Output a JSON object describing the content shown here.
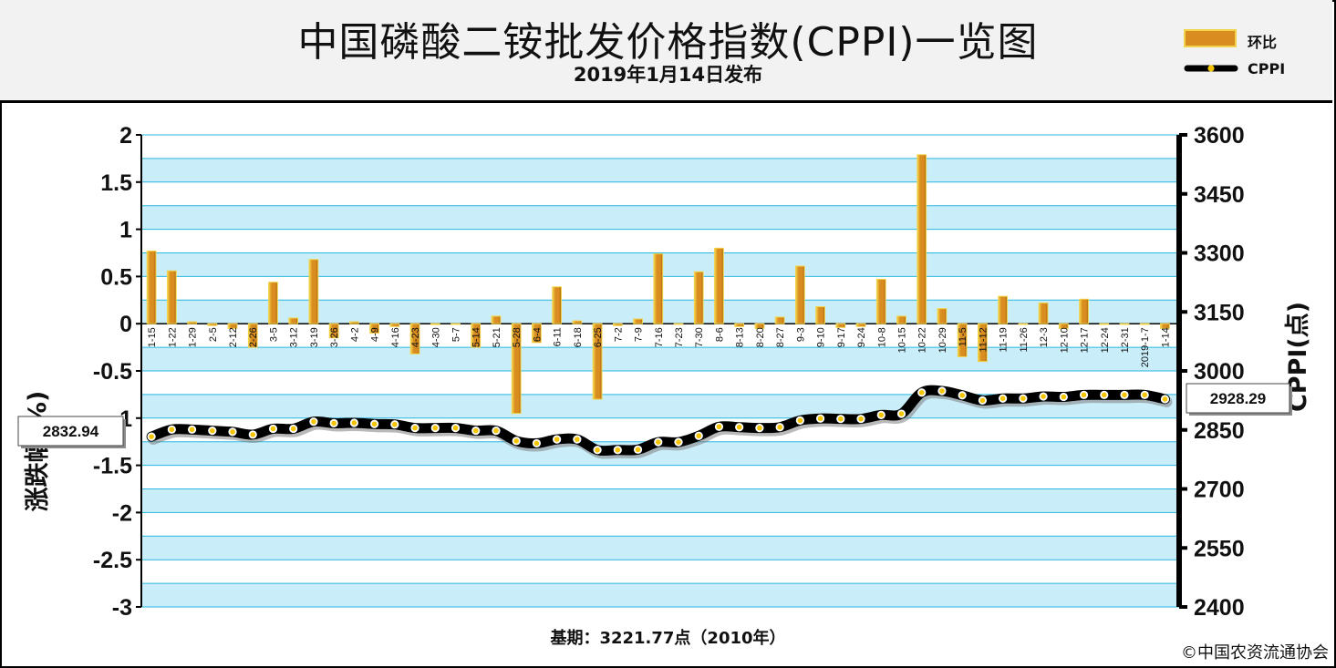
{
  "header": {
    "title": "中国磷酸二铵批发价格指数(CPPI)一览图",
    "subtitle": "2019年1月14日发布"
  },
  "legend": {
    "bar_label": "环比",
    "line_label": "CPPI"
  },
  "footer": {
    "base": "基期：3221.77点（2010年）",
    "copyright": "©中国农资流通协会"
  },
  "callouts": {
    "first": "2832.94",
    "last": "2928.29"
  },
  "colors": {
    "bar_fill": "#d98c1f",
    "bar_edge": "#f2d44a",
    "plot_bg": "#c9eefa",
    "grid": "#29b6e0",
    "line": "#000000",
    "marker": "#f5c400"
  },
  "chart_data": {
    "type": "bar+line",
    "categories": [
      "1-15",
      "1-22",
      "1-29",
      "2-5",
      "2-12",
      "2-26",
      "3-5",
      "3-12",
      "3-19",
      "3-26",
      "4-2",
      "4-9",
      "4-16",
      "4-23",
      "4-30",
      "5-7",
      "5-14",
      "5-21",
      "5-28",
      "6-4",
      "6-11",
      "6-18",
      "6-25",
      "7-2",
      "7-9",
      "7-16",
      "7-23",
      "7-30",
      "8-6",
      "8-13",
      "8-20",
      "8-27",
      "9-3",
      "9-10",
      "9-17",
      "9-24",
      "10-8",
      "10-15",
      "10-22",
      "10-29",
      "11-5",
      "11-12",
      "11-19",
      "11-26",
      "12-3",
      "12-10",
      "12-17",
      "12-24",
      "12-31",
      "2019-1-7",
      "1-14"
    ],
    "series": [
      {
        "name": "环比",
        "axis": "left",
        "values": [
          0.77,
          0.56,
          0.02,
          -0.02,
          -0.05,
          -0.25,
          0.44,
          0.06,
          0.68,
          -0.15,
          0.02,
          -0.1,
          -0.03,
          -0.32,
          -0.01,
          0.0,
          -0.25,
          0.08,
          -0.95,
          -0.2,
          0.39,
          0.03,
          -0.8,
          -0.02,
          0.05,
          0.74,
          0.0,
          0.55,
          0.8,
          -0.03,
          -0.05,
          0.07,
          0.61,
          0.18,
          -0.04,
          -0.03,
          0.47,
          0.08,
          1.79,
          0.16,
          -0.35,
          -0.4,
          0.29,
          0.0,
          0.22,
          -0.05,
          0.26,
          0.0,
          0.0,
          0.0,
          -0.05
        ]
      },
      {
        "name": "CPPI",
        "axis": "right",
        "values": [
          2832.94,
          2851,
          2851,
          2848,
          2845,
          2838,
          2853,
          2853,
          2871,
          2867,
          2868,
          2865,
          2864,
          2855,
          2855,
          2855,
          2848,
          2848,
          2822,
          2816,
          2826,
          2826,
          2799,
          2799,
          2800,
          2819,
          2819,
          2835,
          2858,
          2857,
          2855,
          2857,
          2874,
          2879,
          2878,
          2878,
          2888,
          2891,
          2945,
          2949,
          2938,
          2925,
          2930,
          2930,
          2935,
          2934,
          2939,
          2939,
          2939,
          2939,
          2928.29
        ]
      }
    ],
    "y_left": {
      "label": "涨跌幅(%)",
      "range": [
        -3,
        2
      ],
      "ticks": [
        "2",
        "1.5",
        "1",
        "0.5",
        "0",
        "-0.5",
        "-1",
        "-1.5",
        "-2",
        "-2.5",
        "-3"
      ]
    },
    "y_right": {
      "label": "CPPI(点)",
      "range": [
        2400,
        3600
      ],
      "ticks": [
        "3600",
        "3450",
        "3300",
        "3150",
        "3000",
        "2850",
        "2700",
        "2550",
        "2400"
      ]
    },
    "grid": true,
    "legend_position": "top-right"
  }
}
